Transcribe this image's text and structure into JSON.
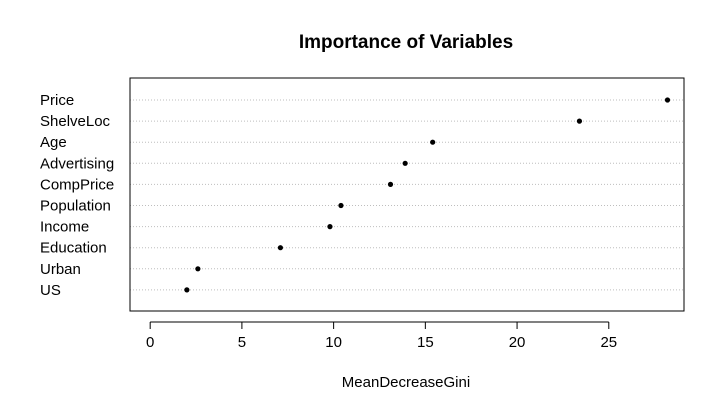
{
  "chart_data": {
    "type": "scatter",
    "title": "Importance of Variables",
    "xlabel": "MeanDecreaseGini",
    "ylabel": "",
    "xlim": [
      -1.1,
      29.1
    ],
    "xticks": [
      0,
      5,
      10,
      15,
      20,
      25
    ],
    "categories": [
      "Price",
      "ShelveLoc",
      "Age",
      "Advertising",
      "CompPrice",
      "Population",
      "Income",
      "Education",
      "Urban",
      "US"
    ],
    "values": [
      28.2,
      23.4,
      15.4,
      13.9,
      13.1,
      10.4,
      9.8,
      7.1,
      2.6,
      2.0
    ],
    "grid": "horizontal-dotted",
    "legend": "none",
    "point_color": "#000000",
    "grid_color": "#bebebe"
  }
}
